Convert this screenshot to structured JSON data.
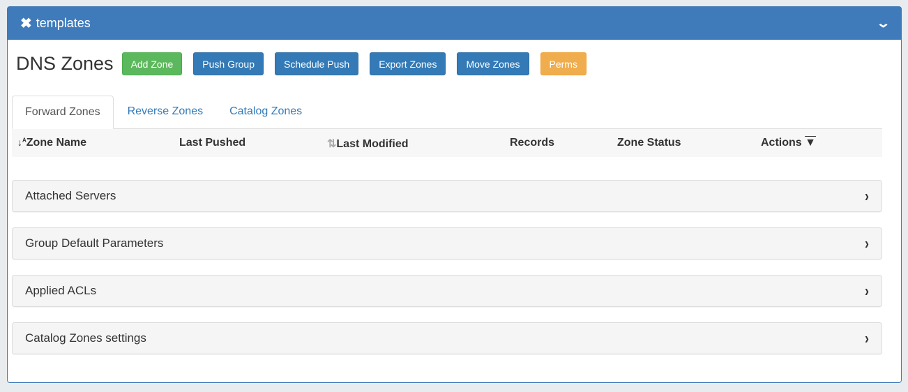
{
  "panel": {
    "title": "templates"
  },
  "page_title": "DNS Zones",
  "buttons": [
    {
      "label": "Add Zone",
      "color": "#5cb85c"
    },
    {
      "label": "Push Group",
      "color": "#337ab7"
    },
    {
      "label": "Schedule Push",
      "color": "#337ab7"
    },
    {
      "label": "Export Zones",
      "color": "#337ab7"
    },
    {
      "label": "Move Zones",
      "color": "#337ab7"
    },
    {
      "label": "Perms",
      "color": "#f0ad4e"
    }
  ],
  "tabs": [
    {
      "label": "Forward Zones",
      "active": true
    },
    {
      "label": "Reverse Zones"
    },
    {
      "label": "Catalog Zones"
    }
  ],
  "columns": [
    "Zone Name",
    "Last Pushed",
    "Last Modified",
    "Records",
    "Zone Status",
    "Actions"
  ],
  "sections": [
    "Attached Servers",
    "Group Default Parameters",
    "Applied ACLs",
    "Catalog Zones settings"
  ]
}
